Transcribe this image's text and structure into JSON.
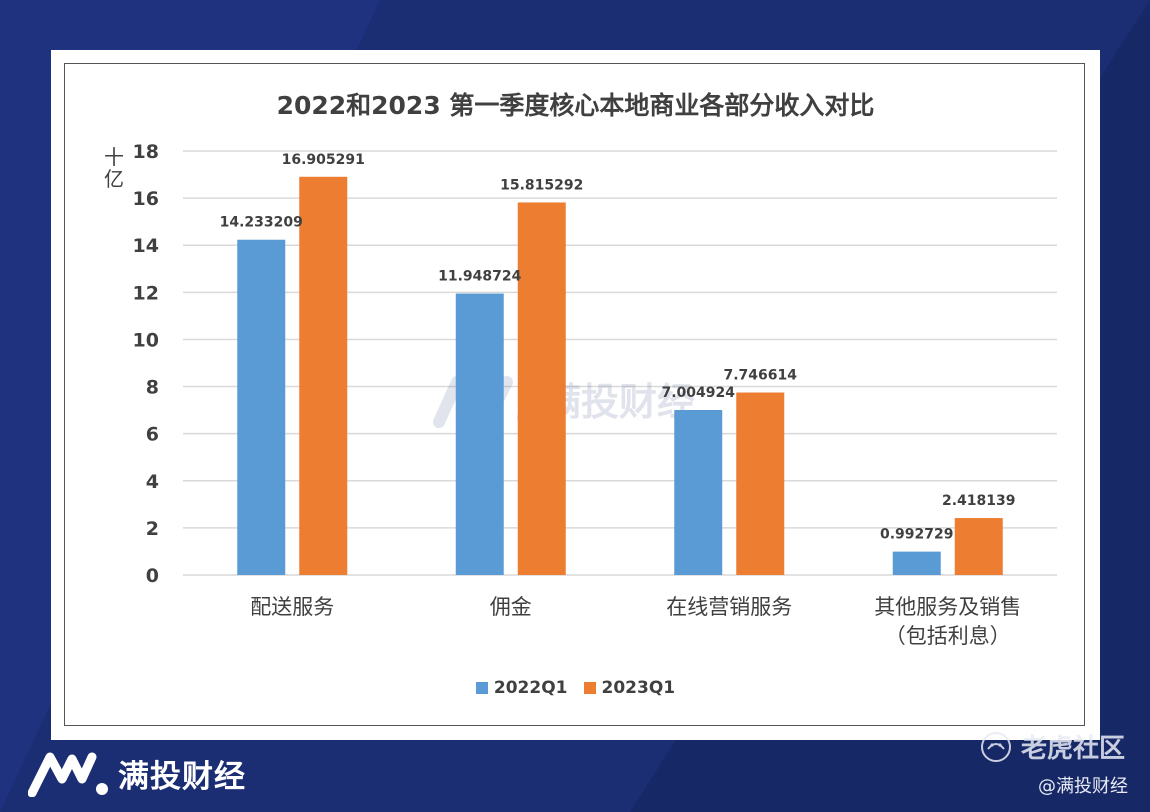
{
  "chart_data": {
    "type": "bar",
    "title": "2022和2023 第一季度核心本地商业各部分收入对比",
    "unit_label": "十亿",
    "categories": [
      [
        "配送服务"
      ],
      [
        "佣金"
      ],
      [
        "在线营销服务"
      ],
      [
        "其他服务及销售",
        "（包括利息）"
      ]
    ],
    "series": [
      {
        "name": "2022Q1",
        "color": "#5b9bd5",
        "values": [
          14.233209,
          11.948724,
          7.004924,
          0.992729
        ],
        "labels": [
          "14.233209",
          "11.948724",
          "7.004924",
          "0.992729"
        ]
      },
      {
        "name": "2023Q1",
        "color": "#ed7d31",
        "values": [
          16.905291,
          15.815292,
          7.746614,
          2.418139
        ],
        "labels": [
          "16.905291",
          "15.815292",
          "7.746614",
          "2.418139"
        ]
      }
    ],
    "ylim": [
      0,
      18
    ],
    "yticks": [
      0,
      2,
      4,
      6,
      8,
      10,
      12,
      14,
      16,
      18
    ],
    "grid": true,
    "legend_position": "bottom"
  },
  "watermark": {
    "text": "满投财经"
  },
  "brand": {
    "name": "满投财经"
  },
  "community": {
    "name": "老虎社区",
    "handle": "@满投财经"
  }
}
